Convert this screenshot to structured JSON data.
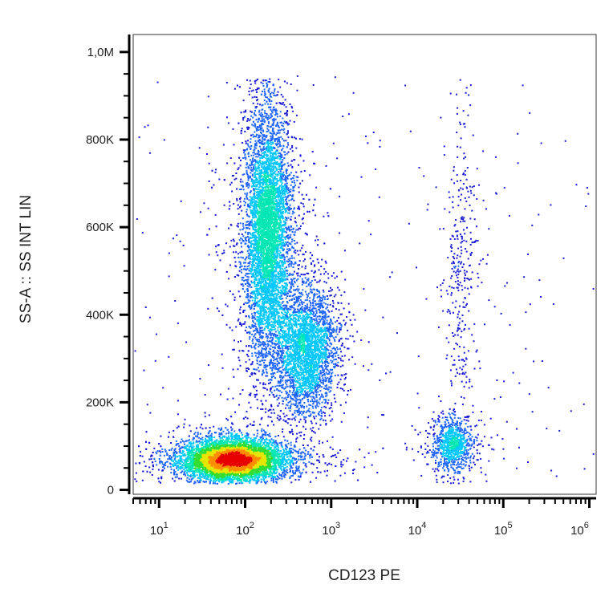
{
  "chart_data": {
    "type": "scatter",
    "style": "density-colored flow cytometry dot plot",
    "xlabel": "CD123 PE",
    "ylabel": "SS-A :: SS INT LIN",
    "x_scale": "log",
    "xlim": [
      5,
      1200000
    ],
    "ylim": [
      -10000,
      1040000
    ],
    "x_ticks": [
      {
        "value": 10,
        "base": "10",
        "exp": "1"
      },
      {
        "value": 100,
        "base": "10",
        "exp": "2"
      },
      {
        "value": 1000,
        "base": "10",
        "exp": "3"
      },
      {
        "value": 10000,
        "base": "10",
        "exp": "4"
      },
      {
        "value": 100000,
        "base": "10",
        "exp": "5"
      },
      {
        "value": 1000000,
        "base": "10",
        "exp": "6"
      }
    ],
    "y_ticks": [
      {
        "value": 0,
        "label": "0"
      },
      {
        "value": 200000,
        "label": "200K"
      },
      {
        "value": 400000,
        "label": "400K"
      },
      {
        "value": 600000,
        "label": "600K"
      },
      {
        "value": 800000,
        "label": "800K"
      },
      {
        "value": 1000000,
        "label": "1,0M"
      }
    ],
    "populations": [
      {
        "log10_x_center": 1.85,
        "y_center": 70000,
        "log10_x_sd": 0.28,
        "y_sd": 22000,
        "count": 9000,
        "peak": "red"
      },
      {
        "log10_x_center": 2.25,
        "y_center": 590000,
        "log10_x_sd": 0.13,
        "y_sd": 140000,
        "count": 6500,
        "peak": "green"
      },
      {
        "log10_x_center": 2.7,
        "y_center": 320000,
        "log10_x_sd": 0.17,
        "y_sd": 70000,
        "count": 3000,
        "peak": "cyan"
      },
      {
        "log10_x_center": 4.4,
        "y_center": 105000,
        "log10_x_sd": 0.12,
        "y_sd": 30000,
        "count": 900,
        "peak": "cyan"
      },
      {
        "log10_x_center": 4.5,
        "y_center": 500000,
        "log10_x_sd": 0.1,
        "y_sd": 180000,
        "count": 350,
        "peak": "blue"
      }
    ],
    "colormap": [
      "#1a1ad6",
      "#1f64ff",
      "#00c8ff",
      "#00e6b4",
      "#32dc32",
      "#e6e600",
      "#ff8c00",
      "#e60000"
    ]
  }
}
